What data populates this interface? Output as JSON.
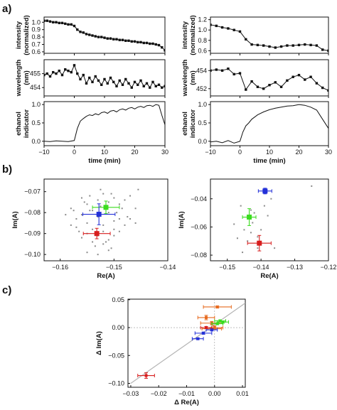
{
  "figure": {
    "panel_labels": [
      "a)",
      "b)",
      "c)"
    ]
  },
  "chart_data": [
    {
      "id": "a-left-intensity",
      "type": "scatter",
      "xlim": [
        -10,
        30
      ],
      "ylim": [
        0.58,
        1.07
      ],
      "yticks": [
        0.6,
        0.7,
        0.8,
        0.9,
        1.0
      ],
      "yticklabels": [
        "0.6",
        "0.7",
        "0.8",
        "0.9",
        "1.0"
      ],
      "xticks": [
        -10,
        0,
        10,
        20,
        30
      ],
      "xticklabels": [],
      "ylabel": [
        "intensity",
        "(normalized)"
      ],
      "xlabel": "",
      "series": [
        {
          "line": true,
          "x": [
            -10,
            -9,
            -8,
            -7,
            -6,
            -5,
            -4,
            -3,
            -2,
            -1,
            0,
            1,
            2,
            3,
            4,
            5,
            6,
            7,
            8,
            9,
            10,
            11,
            12,
            13,
            14,
            15,
            16,
            17,
            18,
            19,
            20,
            21,
            22,
            23,
            24,
            25,
            26,
            27,
            28,
            29,
            30
          ],
          "y": [
            1.02,
            1.02,
            1.01,
            1.0,
            1.0,
            0.99,
            0.99,
            0.98,
            0.97,
            0.97,
            0.95,
            0.9,
            0.87,
            0.86,
            0.84,
            0.83,
            0.82,
            0.81,
            0.8,
            0.8,
            0.79,
            0.78,
            0.78,
            0.77,
            0.77,
            0.76,
            0.76,
            0.75,
            0.75,
            0.74,
            0.74,
            0.73,
            0.73,
            0.72,
            0.72,
            0.71,
            0.71,
            0.7,
            0.69,
            0.66,
            0.62
          ]
        }
      ]
    },
    {
      "id": "a-left-wavelength",
      "type": "scatter",
      "xlim": [
        -10,
        30
      ],
      "ylim": [
        453.4,
        456.0
      ],
      "yticks": [
        454,
        455
      ],
      "yticklabels": [
        "454",
        "455"
      ],
      "xticks": [
        -10,
        0,
        10,
        20,
        30
      ],
      "xticklabels": [],
      "ylabel": [
        "wavelength",
        "(nm)"
      ],
      "xlabel": "",
      "series": [
        {
          "line": true,
          "x": [
            -10,
            -9,
            -8,
            -7,
            -6,
            -5,
            -4,
            -3,
            -2,
            -1,
            0,
            1,
            2,
            3,
            4,
            5,
            6,
            7,
            8,
            9,
            10,
            11,
            12,
            13,
            14,
            15,
            16,
            17,
            18,
            19,
            20,
            21,
            22,
            23,
            24,
            25,
            26,
            27,
            28,
            29,
            30
          ],
          "y": [
            454.9,
            455.0,
            454.8,
            455.1,
            455.0,
            455.2,
            454.9,
            455.3,
            455.2,
            455.1,
            455.6,
            455.0,
            454.6,
            454.9,
            454.3,
            454.7,
            454.4,
            454.8,
            454.5,
            454.2,
            454.6,
            454.3,
            454.7,
            454.4,
            454.1,
            454.5,
            454.2,
            454.6,
            454.3,
            454.0,
            454.4,
            454.2,
            454.5,
            454.1,
            454.3,
            454.0,
            454.4,
            454.1,
            454.2,
            454.0,
            454.1
          ]
        }
      ]
    },
    {
      "id": "a-left-ethanol",
      "type": "line",
      "xlim": [
        -10,
        30
      ],
      "ylim": [
        -0.12,
        1.08
      ],
      "yticks": [
        0.0,
        0.5,
        1.0
      ],
      "yticklabels": [
        "0.0",
        "0.5",
        "1.0"
      ],
      "xticks": [
        -10,
        0,
        10,
        20,
        30
      ],
      "xticklabels": [
        "−10",
        "0",
        "10",
        "20",
        "30"
      ],
      "ylabel": [
        "ethanol",
        "indicator"
      ],
      "xlabel": "time (min)",
      "series": [
        {
          "line": true,
          "x": [
            -10,
            -8,
            -6,
            -4,
            -2,
            0,
            1,
            2,
            3,
            4,
            5,
            6,
            7,
            8,
            9,
            10,
            11,
            12,
            13,
            14,
            15,
            16,
            17,
            18,
            19,
            20,
            21,
            22,
            23,
            24,
            25,
            26,
            27,
            28,
            29,
            30
          ],
          "y": [
            0.0,
            -0.01,
            0.01,
            0.0,
            -0.01,
            0.02,
            0.35,
            0.55,
            0.62,
            0.68,
            0.72,
            0.7,
            0.75,
            0.72,
            0.78,
            0.8,
            0.76,
            0.82,
            0.84,
            0.8,
            0.86,
            0.88,
            0.85,
            0.9,
            0.92,
            0.88,
            0.93,
            0.95,
            0.92,
            0.97,
            0.98,
            0.95,
            1.0,
            0.98,
            0.7,
            0.45
          ]
        }
      ]
    },
    {
      "id": "a-right-intensity",
      "type": "scatter",
      "xlim": [
        -10,
        30
      ],
      "ylim": [
        0.55,
        1.25
      ],
      "yticks": [
        0.6,
        0.8,
        1.0,
        1.2
      ],
      "yticklabels": [
        "0.6",
        "0.8",
        "1.0",
        "1.2"
      ],
      "xticks": [
        -10,
        0,
        10,
        20,
        30
      ],
      "xticklabels": [],
      "ylabel": [
        "intensity",
        "(normalized)"
      ],
      "xlabel": "",
      "series": [
        {
          "line": true,
          "x": [
            -10,
            -8,
            -6,
            -4,
            -2,
            0,
            2,
            4,
            6,
            8,
            10,
            12,
            14,
            16,
            18,
            20,
            22,
            24,
            26,
            28,
            30
          ],
          "y": [
            1.1,
            1.08,
            1.05,
            1.03,
            1.0,
            0.97,
            0.82,
            0.72,
            0.71,
            0.7,
            0.68,
            0.66,
            0.68,
            0.7,
            0.7,
            0.71,
            0.72,
            0.71,
            0.7,
            0.62,
            0.6
          ]
        }
      ]
    },
    {
      "id": "a-right-wavelength",
      "type": "scatter",
      "xlim": [
        -10,
        30
      ],
      "ylim": [
        451.2,
        455.2
      ],
      "yticks": [
        452,
        454
      ],
      "yticklabels": [
        "452",
        "454"
      ],
      "xticks": [
        -10,
        0,
        10,
        20,
        30
      ],
      "xticklabels": [],
      "ylabel": [
        "wavelength",
        "(nm)"
      ],
      "xlabel": "",
      "series": [
        {
          "line": true,
          "x": [
            -10,
            -8,
            -6,
            -4,
            -2,
            0,
            2,
            4,
            6,
            8,
            10,
            12,
            14,
            16,
            18,
            20,
            22,
            24,
            26,
            28,
            30
          ],
          "y": [
            454.0,
            454.1,
            454.0,
            454.2,
            453.6,
            453.7,
            451.9,
            452.8,
            452.2,
            452.0,
            452.4,
            452.7,
            452.2,
            452.9,
            453.3,
            453.5,
            453.0,
            453.3,
            452.6,
            452.1,
            451.8
          ]
        }
      ]
    },
    {
      "id": "a-right-ethanol",
      "type": "line",
      "xlim": [
        -10,
        30
      ],
      "ylim": [
        -0.12,
        1.08
      ],
      "yticks": [
        0.0,
        0.5,
        1.0
      ],
      "yticklabels": [
        "0.0",
        "0.5",
        "1.0"
      ],
      "xticks": [
        -10,
        0,
        10,
        20,
        30
      ],
      "xticklabels": [
        "−10",
        "0",
        "10",
        "20",
        "30"
      ],
      "ylabel": [
        "ethanol",
        "indicator"
      ],
      "xlabel": "time (min)",
      "series": [
        {
          "line": true,
          "x": [
            -10,
            -8,
            -6,
            -4,
            -2,
            0,
            1,
            2,
            3,
            4,
            6,
            8,
            10,
            12,
            14,
            16,
            18,
            20,
            22,
            24,
            26,
            28,
            30
          ],
          "y": [
            -0.02,
            0.0,
            -0.04,
            0.02,
            -0.05,
            0.0,
            0.25,
            0.42,
            0.5,
            0.6,
            0.72,
            0.8,
            0.86,
            0.9,
            0.93,
            0.96,
            0.97,
            1.0,
            0.98,
            0.93,
            0.85,
            0.6,
            0.35
          ]
        }
      ]
    },
    {
      "id": "b-left",
      "type": "scatter",
      "xlim": [
        -0.163,
        -0.14
      ],
      "ylim": [
        -0.103,
        -0.064
      ],
      "xticks": [
        -0.16,
        -0.15,
        -0.14
      ],
      "xticklabels": [
        "−0.16",
        "−0.15",
        "−0.14"
      ],
      "yticks": [
        -0.07,
        -0.08,
        -0.09,
        -0.1
      ],
      "yticklabels": [
        "−0.07",
        "−0.08",
        "−0.09",
        "−0.10"
      ],
      "xlabel": "Re(A)",
      "ylabel": "Im(A)",
      "background_points": {
        "color": "#8a8a8a",
        "x": [
          -0.158,
          -0.156,
          -0.155,
          -0.1545,
          -0.153,
          -0.152,
          -0.151,
          -0.15,
          -0.149,
          -0.148,
          -0.147,
          -0.146,
          -0.1455,
          -0.154,
          -0.156,
          -0.157,
          -0.155,
          -0.153,
          -0.151,
          -0.149,
          -0.152,
          -0.15,
          -0.1475,
          -0.154,
          -0.152,
          -0.155,
          -0.157,
          -0.15,
          -0.148,
          -0.153,
          -0.151,
          -0.156,
          -0.154,
          -0.152,
          -0.15,
          -0.149,
          -0.1535,
          -0.1515,
          -0.1505,
          -0.155,
          -0.153,
          -0.151,
          -0.158,
          -0.1565,
          -0.1485,
          -0.1525,
          -0.1545,
          -0.1495,
          -0.1555,
          -0.1505,
          -0.1525,
          -0.147,
          -0.146,
          -0.159,
          -0.1575
        ],
        "y": [
          -0.078,
          -0.073,
          -0.076,
          -0.072,
          -0.074,
          -0.071,
          -0.075,
          -0.073,
          -0.076,
          -0.074,
          -0.072,
          -0.078,
          -0.069,
          -0.079,
          -0.081,
          -0.083,
          -0.085,
          -0.082,
          -0.08,
          -0.083,
          -0.086,
          -0.084,
          -0.082,
          -0.088,
          -0.089,
          -0.09,
          -0.087,
          -0.088,
          -0.086,
          -0.091,
          -0.093,
          -0.092,
          -0.094,
          -0.095,
          -0.091,
          -0.089,
          -0.096,
          -0.094,
          -0.097,
          -0.099,
          -0.1,
          -0.098,
          -0.086,
          -0.089,
          -0.078,
          -0.077,
          -0.079,
          -0.08,
          -0.075,
          -0.071,
          -0.069,
          -0.083,
          -0.085,
          -0.081,
          -0.079
        ]
      },
      "series": [
        {
          "color": "#3bdc1f",
          "x": [
            -0.1515
          ],
          "y": [
            -0.0775
          ],
          "xerr": [
            0.0025
          ],
          "yerr": [
            0.003
          ]
        },
        {
          "color": "#2330d8",
          "x": [
            -0.1528
          ],
          "y": [
            -0.0808
          ],
          "xerr": [
            0.003
          ],
          "yerr": [
            0.005
          ]
        },
        {
          "color": "#d71d1d",
          "x": [
            -0.1532
          ],
          "y": [
            -0.09
          ],
          "xerr": [
            0.0025
          ],
          "yerr": [
            0.0025
          ]
        }
      ]
    },
    {
      "id": "b-right",
      "type": "scatter",
      "xlim": [
        -0.155,
        -0.12
      ],
      "ylim": [
        -0.084,
        -0.026
      ],
      "xticks": [
        -0.15,
        -0.14,
        -0.13,
        -0.12
      ],
      "xticklabels": [
        "−0.15",
        "−0.14",
        "−0.13",
        "−0.12"
      ],
      "yticks": [
        -0.04,
        -0.06,
        -0.08
      ],
      "yticklabels": [
        "−0.04",
        "−0.06",
        "−0.08"
      ],
      "xlabel": "Re(A)",
      "ylabel": "Im(A)",
      "background_points": {
        "color": "#8a8a8a",
        "x": [
          -0.148,
          -0.146,
          -0.145,
          -0.143,
          -0.142,
          -0.141,
          -0.139,
          -0.137,
          -0.147,
          -0.144,
          -0.14,
          -0.1425,
          -0.1455,
          -0.138,
          -0.136,
          -0.125,
          -0.141,
          -0.143
        ],
        "y": [
          -0.058,
          -0.045,
          -0.062,
          -0.064,
          -0.05,
          -0.075,
          -0.045,
          -0.04,
          -0.068,
          -0.07,
          -0.062,
          -0.057,
          -0.078,
          -0.052,
          -0.075,
          -0.031,
          -0.067,
          -0.048
        ]
      },
      "series": [
        {
          "color": "#2330d8",
          "x": [
            -0.1388
          ],
          "y": [
            -0.0345
          ],
          "xerr": [
            0.002
          ],
          "yerr": [
            0.002
          ]
        },
        {
          "color": "#3bdc1f",
          "x": [
            -0.1435
          ],
          "y": [
            -0.053
          ],
          "xerr": [
            0.002
          ],
          "yerr": [
            0.006
          ]
        },
        {
          "color": "#d71d1d",
          "x": [
            -0.1405
          ],
          "y": [
            -0.0715
          ],
          "xerr": [
            0.0035
          ],
          "yerr": [
            0.0055
          ]
        }
      ]
    },
    {
      "id": "c",
      "type": "scatter",
      "xlim": [
        -0.031,
        0.011
      ],
      "ylim": [
        -0.107,
        0.051
      ],
      "xticks": [
        -0.03,
        -0.02,
        -0.01,
        0.0,
        0.01
      ],
      "xticklabels": [
        "−0.03",
        "−0.02",
        "−0.01",
        "0.00",
        "0.01"
      ],
      "yticks": [
        0.05,
        0.0,
        -0.05,
        -0.1
      ],
      "yticklabels": [
        "0.05",
        "0.00",
        "−0.05",
        "−0.10"
      ],
      "xlabel": "Δ Re(A)",
      "ylabel": "Δ Im(A)",
      "fit_line": {
        "color": "#b5b5b5",
        "x": [
          -0.03,
          0.011
        ],
        "y": [
          -0.1,
          0.044
        ]
      },
      "series": [
        {
          "color": "#e76a1e",
          "x": [
            0.001
          ],
          "y": [
            0.037
          ],
          "xerr": [
            0.005
          ],
          "yerr": [
            0.002
          ]
        },
        {
          "color": "#e76a1e",
          "x": [
            -0.003
          ],
          "y": [
            0.018
          ],
          "xerr": [
            0.003
          ],
          "yerr": [
            0.004
          ]
        },
        {
          "color": "#e76a1e",
          "x": [
            -0.001
          ],
          "y": [
            0.008
          ],
          "xerr": [
            0.004
          ],
          "yerr": [
            0.003
          ]
        },
        {
          "color": "#e76a1e",
          "x": [
            0.0
          ],
          "y": [
            0.0
          ],
          "xerr": [
            0.003
          ],
          "yerr": [
            0.003
          ]
        },
        {
          "color": "#e76a1e",
          "x": [
            -0.001
          ],
          "y": [
            -0.002
          ],
          "xerr": [
            0.0035
          ],
          "yerr": [
            0.002
          ]
        },
        {
          "color": "#3bdc1f",
          "x": [
            0.002
          ],
          "y": [
            0.012
          ],
          "xerr": [
            0.002
          ],
          "yerr": [
            0.002
          ]
        },
        {
          "color": "#3bdc1f",
          "x": [
            0.003
          ],
          "y": [
            0.01
          ],
          "xerr": [
            0.002
          ],
          "yerr": [
            0.002
          ]
        },
        {
          "color": "#3bdc1f",
          "x": [
            0.001
          ],
          "y": [
            0.007
          ],
          "xerr": [
            0.002
          ],
          "yerr": [
            0.002
          ]
        },
        {
          "color": "#2330d8",
          "x": [
            -0.004
          ],
          "y": [
            -0.01
          ],
          "xerr": [
            0.003
          ],
          "yerr": [
            0.002
          ]
        },
        {
          "color": "#2330d8",
          "x": [
            -0.006
          ],
          "y": [
            -0.02
          ],
          "xerr": [
            0.002
          ],
          "yerr": [
            0.0015
          ]
        },
        {
          "color": "#2330d8",
          "x": [
            -0.001
          ],
          "y": [
            -0.004
          ],
          "xerr": [
            0.002
          ],
          "yerr": [
            0.002
          ]
        },
        {
          "color": "#d71d1d",
          "x": [
            -0.0245
          ],
          "y": [
            -0.086
          ],
          "xerr": [
            0.003
          ],
          "yerr": [
            0.005
          ]
        },
        {
          "color": "#d71d1d",
          "x": [
            -0.003
          ],
          "y": [
            0.0
          ],
          "xerr": [
            0.002
          ],
          "yerr": [
            0.002
          ]
        }
      ]
    }
  ]
}
